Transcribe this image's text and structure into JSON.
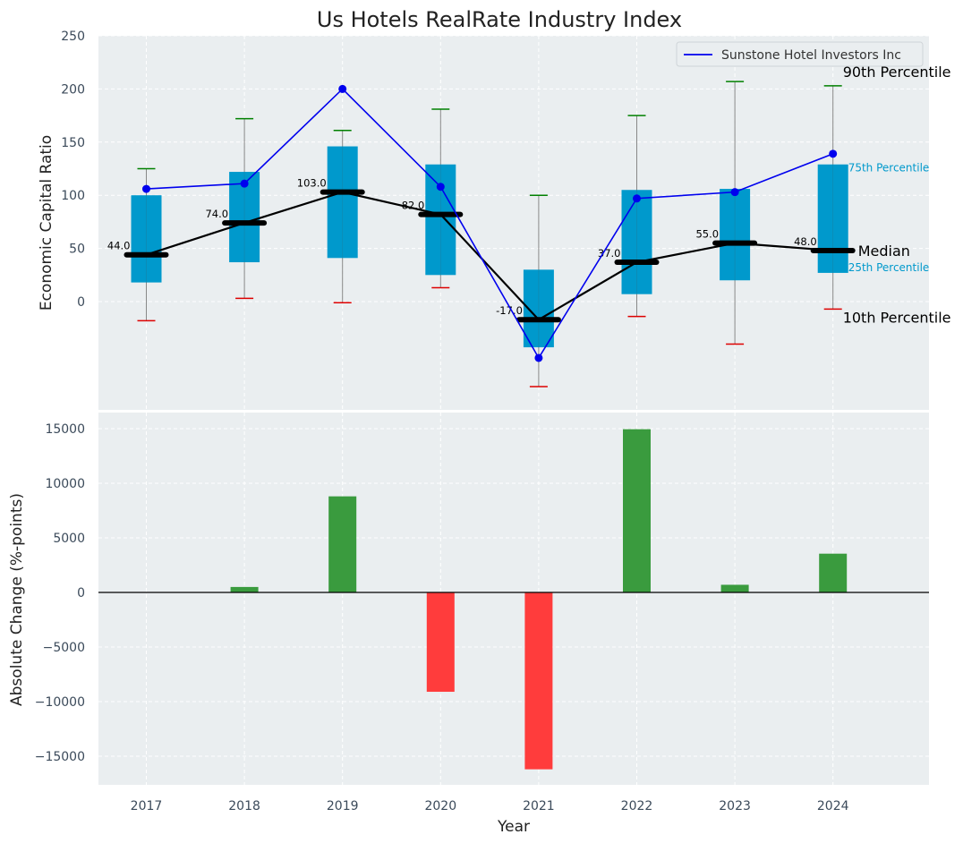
{
  "chart_data": [
    {
      "type": "box",
      "title": "Us Hotels RealRate Industry Index",
      "ylabel": "Economic Capital Ratio",
      "ylim": [
        -100,
        250
      ],
      "yticks": [
        0,
        50,
        100,
        150,
        200,
        250
      ],
      "years": [
        "2017",
        "2018",
        "2019",
        "2020",
        "2021",
        "2022",
        "2023",
        "2024"
      ],
      "p10": [
        -18,
        3,
        -1,
        13,
        -80,
        -14,
        -40,
        -7
      ],
      "p25": [
        18,
        37,
        41,
        25,
        -43,
        7,
        20,
        27
      ],
      "median": [
        44,
        74,
        103,
        82,
        -17,
        37,
        55,
        48
      ],
      "median_labels": [
        "44.0",
        "74.0",
        "103.0",
        "82.0",
        "-17.0",
        "37.0",
        "55.0",
        "48.0"
      ],
      "p75": [
        100,
        122,
        146,
        129,
        30,
        105,
        106,
        129
      ],
      "p90": [
        125,
        172,
        161,
        181,
        100,
        175,
        207,
        203
      ],
      "company": {
        "name": "Sunstone Hotel Investors Inc",
        "values": [
          106,
          111,
          200,
          108,
          -53,
          97,
          103,
          139
        ]
      },
      "annotations": {
        "p90": "90th Percentile",
        "p75": "75th Percentile",
        "median": "Median",
        "p25": "25th Percentile",
        "p10": "10th Percentile"
      },
      "colors": {
        "box": "#0099cc",
        "median": "#000000",
        "company": "#0000ee",
        "p90_cap": "#008000",
        "p10_cap": "#dd0000",
        "background": "#eaeef0"
      }
    },
    {
      "type": "bar",
      "xlabel": "Year",
      "ylabel": "Absolute Change (%-points)",
      "ylim": [
        -17500,
        16500
      ],
      "yticks": [
        -15000,
        -10000,
        -5000,
        0,
        5000,
        10000,
        15000
      ],
      "ytick_labels": [
        "−15000",
        "−10000",
        "−5000",
        "0",
        "5000",
        "10000",
        "15000"
      ],
      "categories": [
        "2017",
        "2018",
        "2019",
        "2020",
        "2021",
        "2022",
        "2023",
        "2024"
      ],
      "values": [
        0,
        500,
        8800,
        -9100,
        -16200,
        14950,
        700,
        3550
      ],
      "colors": {
        "positive": "#3a9b3e",
        "negative": "#ff3c3c"
      }
    }
  ]
}
